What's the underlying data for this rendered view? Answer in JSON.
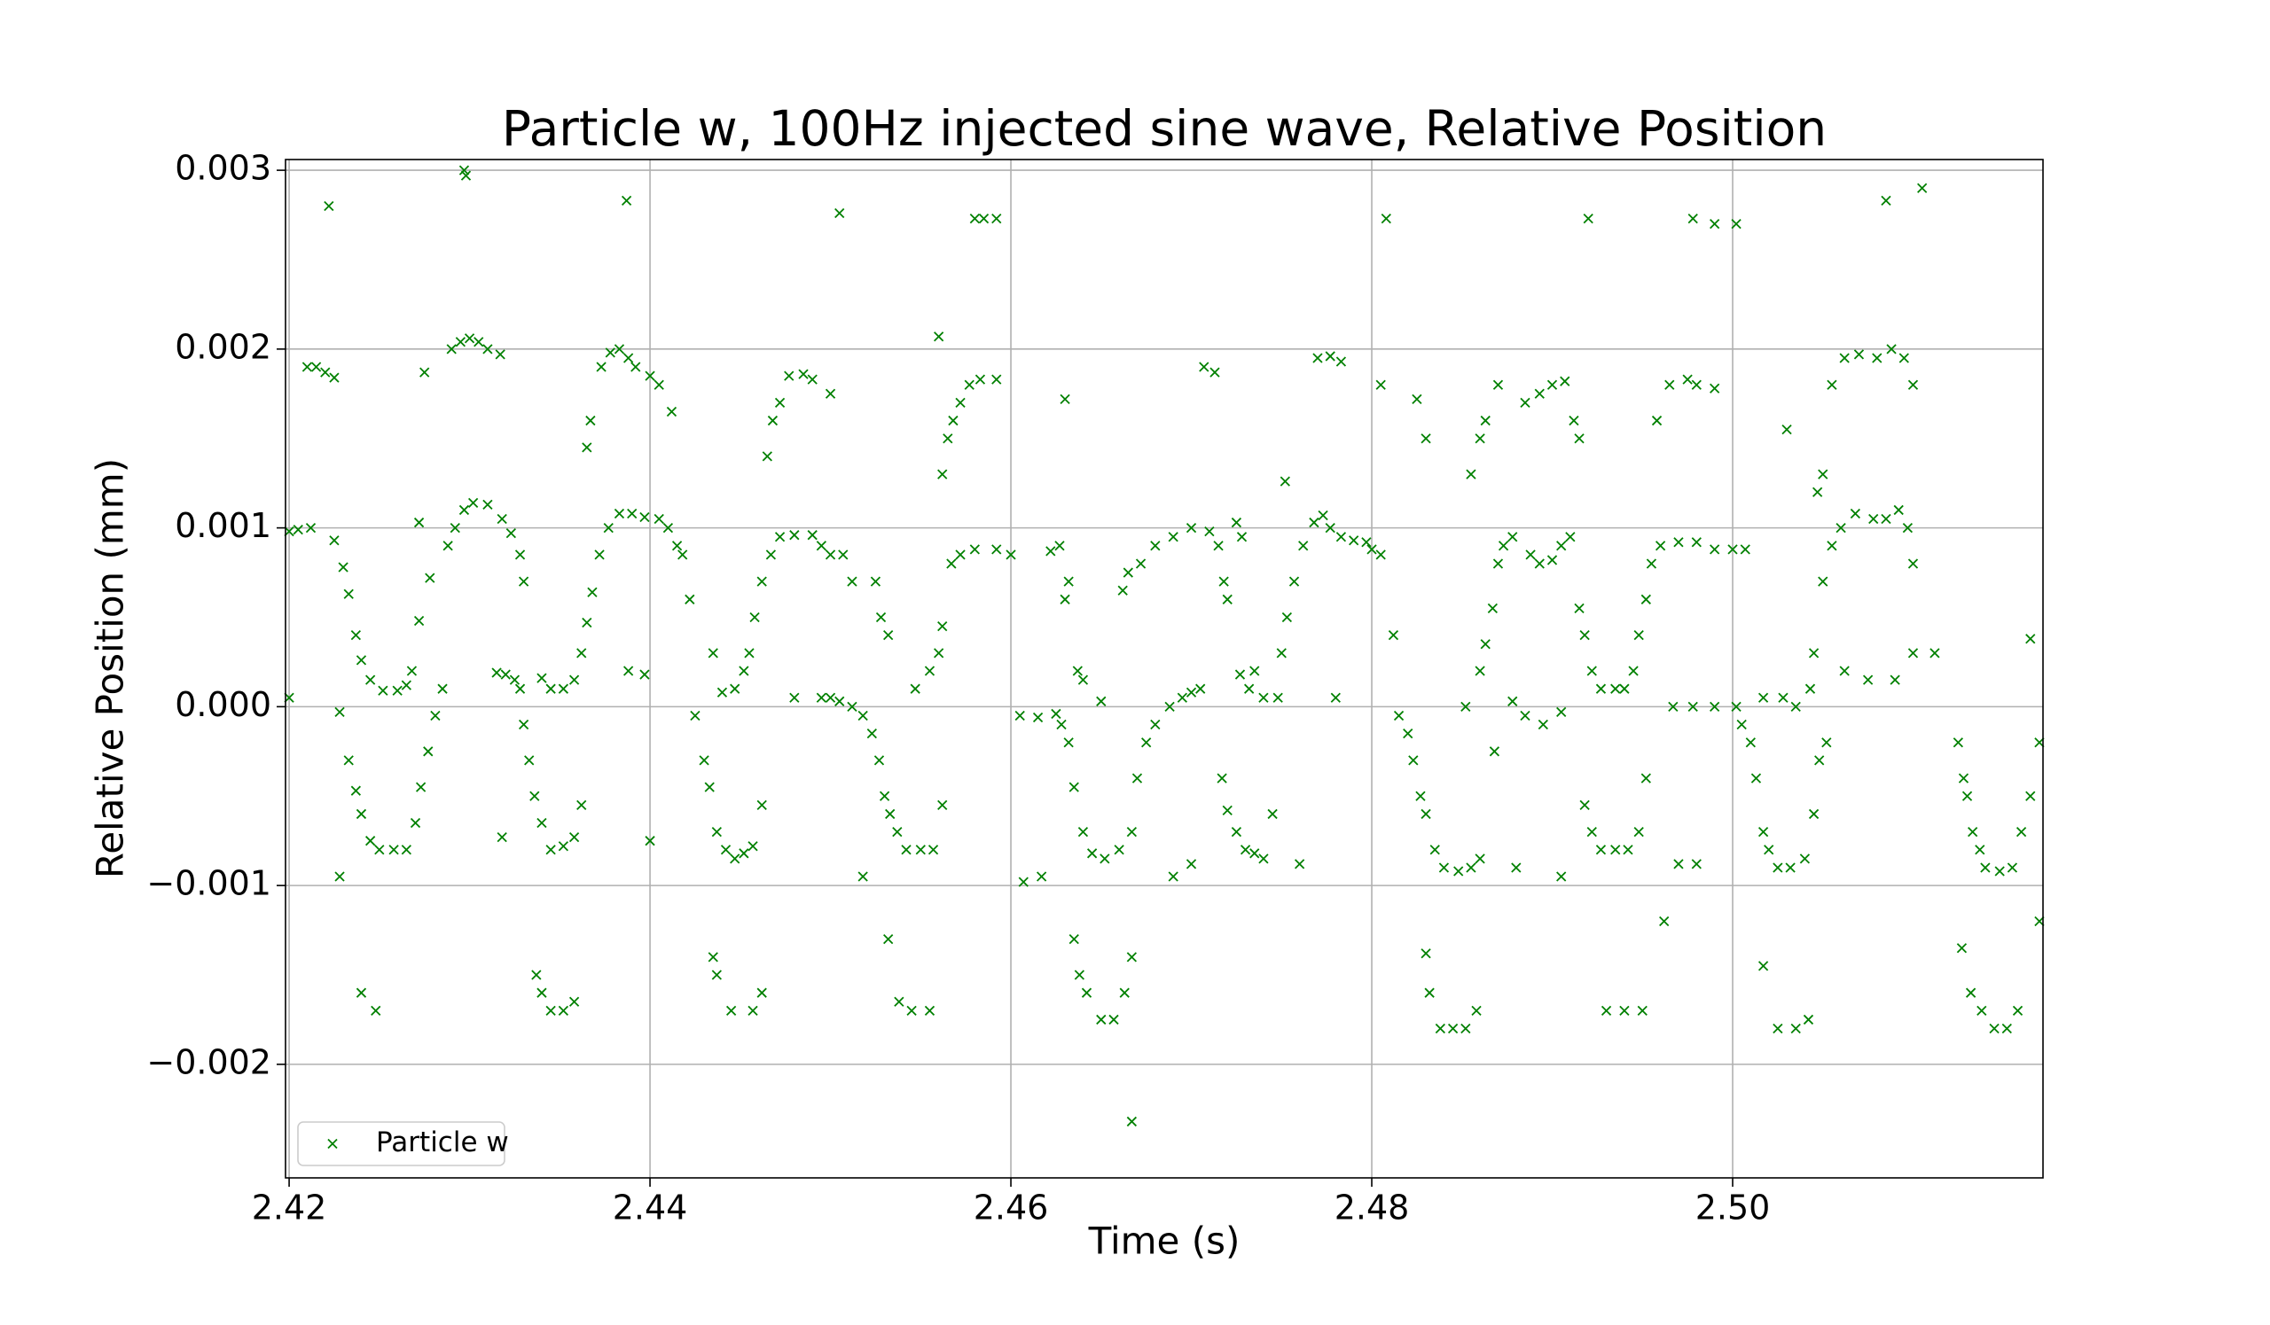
{
  "chart_data": {
    "type": "scatter",
    "title": "Particle w, 100Hz injected sine wave, Relative Position",
    "xlabel": "Time (s)",
    "ylabel": "Relative Position (mm)",
    "xlim": [
      2.4198,
      2.5172
    ],
    "ylim": [
      -0.002635,
      0.00306
    ],
    "xticks": [
      2.42,
      2.44,
      2.46,
      2.48,
      {
        "value": 2.5,
        "label": "2.50"
      }
    ],
    "yticks": [
      {
        "value": -0.002,
        "label": "−0.002"
      },
      {
        "value": -0.001,
        "label": "−0.001"
      },
      {
        "value": 0,
        "label": "0.000"
      },
      0.001,
      0.002,
      0.003
    ],
    "grid": true,
    "legend": "lower left",
    "marker": "x",
    "x": [
      2.421,
      2.4215,
      2.422,
      2.4225,
      2.4222,
      2.42,
      2.4205,
      2.4212,
      2.4225,
      2.423,
      2.4233,
      2.4237,
      2.424,
      2.4245,
      2.4252,
      2.426,
      2.4265,
      2.4268,
      2.42,
      2.4228,
      2.4233,
      2.4237,
      2.424,
      2.4245,
      2.425,
      2.4258,
      2.4265,
      2.427,
      2.4273,
      2.4277,
      2.4281,
      2.4285,
      2.4288,
      2.4292,
      2.4297,
      2.4302,
      2.431,
      2.4318,
      2.4323,
      2.4328,
      2.433,
      2.429,
      2.4295,
      2.43,
      2.4305,
      2.431,
      2.4317,
      2.4297,
      2.4298,
      2.4275,
      2.424,
      2.4248,
      2.4228,
      2.4272,
      2.4278,
      2.4272,
      2.4315,
      2.432,
      2.4325,
      2.4328,
      2.433,
      2.4333,
      2.4336,
      2.434,
      2.4345,
      2.4352,
      2.4358,
      2.4362,
      2.4318,
      2.434,
      2.4345,
      2.4352,
      2.4358,
      2.4362,
      2.4365,
      2.4368,
      2.4372,
      2.4377,
      2.4383,
      2.439,
      2.4397,
      2.4405,
      2.441,
      2.4415,
      2.4418,
      2.4422,
      2.4365,
      2.4367,
      2.4373,
      2.4378,
      2.4383,
      2.4388,
      2.4392,
      2.44,
      2.4405,
      2.4412,
      2.4387,
      2.4337,
      2.434,
      2.4345,
      2.4352,
      2.4358,
      2.4388,
      2.4397,
      2.44,
      2.4425,
      2.443,
      2.4433,
      2.4437,
      2.4442,
      2.4447,
      2.4452,
      2.4457,
      2.4462,
      2.4435,
      2.444,
      2.4447,
      2.4452,
      2.4455,
      2.4458,
      2.4462,
      2.4467,
      2.4472,
      2.448,
      2.449,
      2.4495,
      2.45,
      2.4507,
      2.4512,
      2.4465,
      2.4468,
      2.4472,
      2.4477,
      2.4485,
      2.449,
      2.45,
      2.4505,
      2.4435,
      2.4437,
      2.4445,
      2.4457,
      2.4462,
      2.448,
      2.4495,
      2.45,
      2.4505,
      2.4512,
      2.4518,
      2.4523,
      2.4527,
      2.453,
      2.4533,
      2.4537,
      2.4542,
      2.455,
      2.4557,
      2.4562,
      2.4518,
      2.4525,
      2.4528,
      2.4532,
      2.4547,
      2.4555,
      2.456,
      2.4562,
      2.4567,
      2.4572,
      2.458,
      2.4592,
      2.46,
      2.4562,
      2.4565,
      2.4568,
      2.4572,
      2.4577,
      2.4583,
      2.4592,
      2.456,
      2.458,
      2.4585,
      2.4592,
      2.4532,
      2.4538,
      2.4545,
      2.4555,
      2.4605,
      2.4615,
      2.4625,
      2.4628,
      2.4632,
      2.4635,
      2.464,
      2.4645,
      2.4652,
      2.466,
      2.4667,
      2.467,
      2.4675,
      2.468,
      2.4688,
      2.4695,
      2.47,
      2.4705,
      2.4607,
      2.4617,
      2.4637,
      2.464,
      2.465,
      2.463,
      2.4632,
      2.4627,
      2.4622,
      2.4662,
      2.4665,
      2.4672,
      2.468,
      2.469,
      2.47,
      2.471,
      2.4715,
      2.4718,
      2.472,
      2.4635,
      2.4638,
      2.4642,
      2.465,
      2.4657,
      2.4663,
      2.4667,
      2.4667,
      2.463,
      2.4707,
      2.4713,
      2.469,
      2.47,
      2.4727,
      2.4732,
      2.474,
      2.4748,
      2.4725,
      2.4728,
      2.4735,
      2.4717,
      2.472,
      2.4725,
      2.473,
      2.4735,
      2.474,
      2.4745,
      2.475,
      2.4753,
      2.4757,
      2.4762,
      2.4768,
      2.4773,
      2.4777,
      2.4783,
      2.479,
      2.4797,
      2.48,
      2.476,
      2.4752,
      2.477,
      2.4777,
      2.4783,
      2.4805,
      2.4808,
      2.478,
      2.4805,
      2.4812,
      2.4815,
      2.482,
      2.4823,
      2.4827,
      2.483,
      2.4835,
      2.484,
      2.4848,
      2.4855,
      2.486,
      2.4825,
      2.483,
      2.483,
      2.4832,
      2.4838,
      2.4845,
      2.4852,
      2.4858,
      2.4852,
      2.486,
      2.4863,
      2.4867,
      2.487,
      2.4873,
      2.4878,
      2.4888,
      2.4893,
      2.49,
      2.4905,
      2.491,
      2.4855,
      2.486,
      2.4863,
      2.487,
      2.4885,
      2.4893,
      2.49,
      2.4907,
      2.4912,
      2.4915,
      2.492,
      2.4868,
      2.4878,
      2.4885,
      2.4895,
      2.4905,
      2.488,
      2.4905,
      2.4915,
      2.4918,
      2.4922,
      2.4927,
      2.4935,
      2.494,
      2.4945,
      2.4948,
      2.4952,
      2.4955,
      2.496,
      2.497,
      2.498,
      2.499,
      2.5,
      2.5007,
      2.4918,
      2.4922,
      2.4927,
      2.4935,
      2.4942,
      2.4948,
      2.4952,
      2.493,
      2.494,
      2.495,
      2.4962,
      2.4958,
      2.4965,
      2.4975,
      2.498,
      2.499,
      2.4978,
      2.499,
      2.5002,
      2.4967,
      2.4978,
      2.499,
      2.5002,
      2.497,
      2.498,
      2.5005,
      2.501,
      2.5013,
      2.5017,
      2.502,
      2.5025,
      2.5032,
      2.504,
      2.5045,
      2.5048,
      2.5052,
      2.5017,
      2.5028,
      2.5035,
      2.5043,
      2.5045,
      2.505,
      2.5055,
      2.506,
      2.5068,
      2.5078,
      2.5085,
      2.5092,
      2.5097,
      2.51,
      2.5017,
      2.5025,
      2.5035,
      2.5042,
      2.503,
      2.5047,
      2.505,
      2.5055,
      2.5062,
      2.507,
      2.508,
      2.5088,
      2.5095,
      2.51,
      2.5085,
      2.5105,
      2.5062,
      2.5075,
      2.509,
      2.51,
      2.5112,
      2.5125,
      2.5128,
      2.513,
      2.5133,
      2.5137,
      2.514,
      2.5148,
      2.5155,
      2.516,
      2.5165,
      2.517,
      2.5165,
      2.517,
      2.5127,
      2.5132,
      2.5138,
      2.5145,
      2.5152,
      2.5158
    ],
    "series": [
      {
        "name": "Particle w",
        "color": "green",
        "values": [
          0.0019,
          0.0019,
          0.00187,
          0.00184,
          0.0028,
          0.00098,
          0.00099,
          0.001,
          0.00093,
          0.00078,
          0.00063,
          0.0004,
          0.00026,
          0.00015,
          9e-05,
          9e-05,
          0.00012,
          0.0002,
          5e-05,
          -3e-05,
          -0.0003,
          -0.00047,
          -0.0006,
          -0.00075,
          -0.0008,
          -0.0008,
          -0.0008,
          -0.00065,
          -0.00045,
          -0.00025,
          -5e-05,
          0.0001,
          0.0009,
          0.001,
          0.0011,
          0.00114,
          0.00113,
          0.00105,
          0.00097,
          0.00085,
          0.0007,
          0.002,
          0.00204,
          0.00206,
          0.00204,
          0.002,
          0.00197,
          0.003,
          0.00297,
          0.00187,
          -0.0016,
          -0.0017,
          -0.00095,
          0.00103,
          0.00072,
          0.00048,
          0.00019,
          0.00018,
          0.00015,
          0.0001,
          -0.0001,
          -0.0003,
          -0.0005,
          -0.00065,
          -0.0008,
          -0.00078,
          -0.00073,
          -0.00055,
          -0.00073,
          0.00016,
          0.0001,
          0.0001,
          0.00015,
          0.0003,
          0.00047,
          0.00064,
          0.00085,
          0.001,
          0.00108,
          0.00108,
          0.00106,
          0.00105,
          0.001,
          0.0009,
          0.00085,
          0.0006,
          0.00145,
          0.0016,
          0.0019,
          0.00198,
          0.002,
          0.00195,
          0.0019,
          0.00185,
          0.0018,
          0.00165,
          0.00283,
          -0.0015,
          -0.0016,
          -0.0017,
          -0.0017,
          -0.00165,
          0.0002,
          0.00018,
          -0.00075,
          -5e-05,
          -0.0003,
          -0.00045,
          -0.0007,
          -0.0008,
          -0.00085,
          -0.00082,
          -0.00078,
          -0.00055,
          0.0003,
          8e-05,
          0.0001,
          0.0002,
          0.0003,
          0.0005,
          0.0007,
          0.00085,
          0.00095,
          0.00096,
          0.00096,
          0.0009,
          0.00085,
          0.00085,
          0.0007,
          0.0014,
          0.0016,
          0.0017,
          0.00185,
          0.00186,
          0.00183,
          0.00175,
          0.00276,
          -0.0014,
          -0.0015,
          -0.0017,
          -0.0017,
          -0.0016,
          5e-05,
          5e-05,
          5e-05,
          3e-05,
          0,
          -5e-05,
          -0.00015,
          -0.0003,
          -0.0005,
          -0.0006,
          -0.0007,
          -0.0008,
          -0.0008,
          -0.0008,
          -0.00055,
          -0.00095,
          0.0007,
          0.0005,
          0.0004,
          0.0001,
          0.0002,
          0.0003,
          0.00045,
          0.0008,
          0.00085,
          0.00088,
          0.00088,
          0.00085,
          0.0013,
          0.0015,
          0.0016,
          0.0017,
          0.0018,
          0.00183,
          0.00183,
          0.00207,
          0.00273,
          0.00273,
          0.00273,
          -0.0013,
          -0.00165,
          -0.0017,
          -0.0017,
          -5e-05,
          -6e-05,
          -4e-05,
          -0.0001,
          -0.0002,
          -0.00045,
          -0.0007,
          -0.00082,
          -0.00085,
          -0.0008,
          -0.0007,
          -0.0004,
          -0.0002,
          -0.0001,
          0,
          5e-05,
          8e-05,
          0.0001,
          -0.00098,
          -0.00095,
          0.0002,
          0.00015,
          3e-05,
          0.0006,
          0.0007,
          0.0009,
          0.00087,
          0.00065,
          0.00075,
          0.0008,
          0.0009,
          0.00095,
          0.001,
          0.00098,
          0.0009,
          0.0007,
          0.0006,
          -0.0013,
          -0.0015,
          -0.0016,
          -0.00175,
          -0.00175,
          -0.0016,
          -0.0014,
          -0.00232,
          0.00172,
          0.0019,
          0.00187,
          -0.00095,
          -0.00088,
          0.00018,
          0.0001,
          5e-05,
          5e-05,
          0.00103,
          0.00095,
          0.0002,
          -0.0004,
          -0.00058,
          -0.0007,
          -0.0008,
          -0.00082,
          -0.00085,
          -0.0006,
          0.0003,
          0.0005,
          0.0007,
          0.0009,
          0.00103,
          0.00107,
          0.001,
          0.00095,
          0.00093,
          0.00092,
          0.00088,
          -0.00088,
          0.00126,
          0.00195,
          0.00196,
          0.00193,
          0.0018,
          0.00273,
          5e-05,
          0.00085,
          0.0004,
          -5e-05,
          -0.00015,
          -0.0003,
          -0.0005,
          -0.0006,
          -0.0008,
          -0.0009,
          -0.00092,
          -0.0009,
          -0.00085,
          0.00172,
          0.0015,
          -0.00138,
          -0.0016,
          -0.0018,
          -0.0018,
          -0.0018,
          -0.0017,
          0,
          0.0002,
          0.00035,
          0.00055,
          0.0008,
          0.0009,
          0.00095,
          0.00085,
          0.0008,
          0.00082,
          0.0009,
          0.00095,
          0.0013,
          0.0015,
          0.0016,
          0.0018,
          0.0017,
          0.00175,
          0.0018,
          0.00182,
          0.0016,
          0.0015,
          0.00273,
          -0.00025,
          3e-05,
          -5e-05,
          -0.0001,
          -3e-05,
          -0.0009,
          -0.00095,
          0.00055,
          0.0004,
          0.0002,
          0.0001,
          0.0001,
          0.0001,
          0.0002,
          0.0004,
          0.0006,
          0.0008,
          0.0009,
          0.00092,
          0.00092,
          0.00088,
          0.00088,
          0.00088,
          -0.00055,
          -0.0007,
          -0.0008,
          -0.0008,
          -0.0008,
          -0.0007,
          -0.0004,
          -0.0017,
          -0.0017,
          -0.0017,
          -0.0012,
          0.0016,
          0.0018,
          0.00183,
          0.0018,
          0.00178,
          0.00273,
          0.0027,
          0.0027,
          0,
          0,
          0,
          0,
          -0.00088,
          -0.00088,
          -0.0001,
          -0.0002,
          -0.0004,
          -0.0007,
          -0.0008,
          -0.0009,
          -0.0009,
          -0.00085,
          -0.0006,
          -0.0003,
          -0.0002,
          5e-05,
          5e-05,
          0,
          0.0001,
          0.0003,
          0.0007,
          0.0009,
          0.001,
          0.00108,
          0.00105,
          0.00105,
          0.0011,
          0.001,
          0.0008,
          -0.00145,
          -0.0018,
          -0.0018,
          -0.00175,
          0.00155,
          0.0012,
          0.0013,
          0.0018,
          0.00195,
          0.00197,
          0.00195,
          0.002,
          0.00195,
          0.0018,
          0.00283,
          0.0029,
          0.0002,
          0.00015,
          0.00015,
          0.0003,
          0.0003,
          -0.0002,
          -0.0004,
          -0.0005,
          -0.0007,
          -0.0008,
          -0.0009,
          -0.00092,
          -0.0009,
          -0.0007,
          -0.0005,
          -0.0002,
          0.00038,
          -0.0012,
          -0.00135,
          -0.0016,
          -0.0017,
          -0.0018,
          -0.0018,
          -0.0017
        ]
      }
    ]
  }
}
